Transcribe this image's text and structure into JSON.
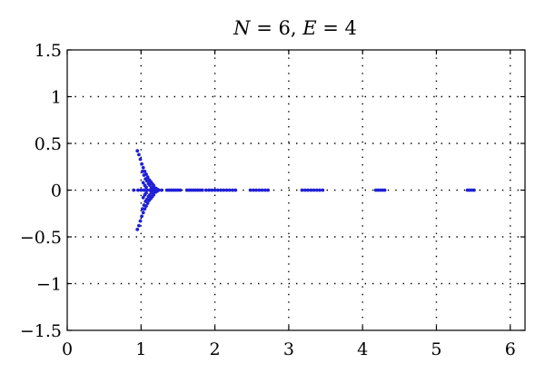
{
  "chart_data": {
    "type": "scatter",
    "title_parts": [
      {
        "text": "N",
        "italic": true
      },
      {
        "text": " = 6, ",
        "italic": false
      },
      {
        "text": "E",
        "italic": true
      },
      {
        "text": " = 4",
        "italic": false
      }
    ],
    "xlabel": "",
    "ylabel": "",
    "xlim": [
      0,
      6.2
    ],
    "ylim": [
      -1.5,
      1.5
    ],
    "grid": true,
    "series_color": "#1f1fd6",
    "xticks": [
      0,
      1,
      2,
      3,
      4,
      5,
      6
    ],
    "yticks": [
      1.5,
      1,
      0.5,
      0,
      -0.5,
      -1,
      -1.5
    ],
    "xtick_labels": [
      "0",
      "1",
      "2",
      "3",
      "4",
      "5",
      "6"
    ],
    "ytick_labels": [
      "1.5",
      "1",
      "0.5",
      "0",
      "−0.5",
      "−1",
      "−1.5"
    ],
    "points": [
      [
        0.95,
        0.42
      ],
      [
        0.97,
        0.38
      ],
      [
        0.99,
        0.33
      ],
      [
        1.01,
        0.28
      ],
      [
        1.03,
        0.24
      ],
      [
        1.05,
        0.2
      ],
      [
        1.07,
        0.17
      ],
      [
        1.09,
        0.14
      ],
      [
        1.11,
        0.11
      ],
      [
        1.13,
        0.09
      ],
      [
        1.15,
        0.07
      ],
      [
        1.17,
        0.05
      ],
      [
        0.95,
        -0.42
      ],
      [
        0.97,
        -0.38
      ],
      [
        0.99,
        -0.33
      ],
      [
        1.01,
        -0.28
      ],
      [
        1.03,
        -0.24
      ],
      [
        1.05,
        -0.2
      ],
      [
        1.07,
        -0.17
      ],
      [
        1.09,
        -0.14
      ],
      [
        1.11,
        -0.11
      ],
      [
        1.13,
        -0.09
      ],
      [
        1.15,
        -0.07
      ],
      [
        1.17,
        -0.05
      ],
      [
        1.02,
        0.2
      ],
      [
        1.04,
        0.16
      ],
      [
        1.06,
        0.12
      ],
      [
        1.08,
        0.1
      ],
      [
        1.1,
        0.07
      ],
      [
        1.12,
        0.05
      ],
      [
        1.02,
        -0.2
      ],
      [
        1.04,
        -0.16
      ],
      [
        1.06,
        -0.12
      ],
      [
        1.08,
        -0.1
      ],
      [
        1.1,
        -0.07
      ],
      [
        1.12,
        -0.05
      ],
      [
        1.03,
        0.08
      ],
      [
        1.05,
        0.05
      ],
      [
        1.07,
        0.03
      ],
      [
        1.03,
        -0.08
      ],
      [
        1.05,
        -0.05
      ],
      [
        1.07,
        -0.03
      ],
      [
        1.14,
        0.02
      ],
      [
        1.16,
        0.03
      ],
      [
        1.18,
        0.02
      ],
      [
        1.14,
        -0.02
      ],
      [
        1.16,
        -0.03
      ],
      [
        1.18,
        -0.02
      ],
      [
        1.2,
        0.02
      ],
      [
        1.22,
        0.01
      ],
      [
        1.2,
        -0.02
      ],
      [
        1.22,
        -0.01
      ],
      [
        0.9,
        0
      ],
      [
        0.96,
        0
      ],
      [
        1.0,
        0
      ],
      [
        1.04,
        0
      ],
      [
        1.08,
        0
      ],
      [
        1.12,
        0
      ],
      [
        1.16,
        0
      ],
      [
        1.2,
        0
      ],
      [
        1.24,
        0
      ],
      [
        1.28,
        0
      ],
      [
        1.35,
        0
      ],
      [
        1.38,
        0
      ],
      [
        1.41,
        0
      ],
      [
        1.44,
        0
      ],
      [
        1.47,
        0
      ],
      [
        1.5,
        0
      ],
      [
        1.53,
        0
      ],
      [
        1.62,
        0
      ],
      [
        1.65,
        0
      ],
      [
        1.68,
        0
      ],
      [
        1.71,
        0
      ],
      [
        1.74,
        0
      ],
      [
        1.77,
        0
      ],
      [
        1.8,
        0
      ],
      [
        1.83,
        0
      ],
      [
        1.88,
        0
      ],
      [
        1.92,
        0
      ],
      [
        1.96,
        0
      ],
      [
        2.0,
        0
      ],
      [
        2.04,
        0
      ],
      [
        2.08,
        0
      ],
      [
        2.12,
        0
      ],
      [
        2.16,
        0
      ],
      [
        2.2,
        0
      ],
      [
        2.24,
        0
      ],
      [
        2.28,
        0
      ],
      [
        2.48,
        0
      ],
      [
        2.52,
        0
      ],
      [
        2.56,
        0
      ],
      [
        2.6,
        0
      ],
      [
        2.64,
        0
      ],
      [
        2.68,
        0
      ],
      [
        2.72,
        0
      ],
      [
        3.18,
        0
      ],
      [
        3.22,
        0
      ],
      [
        3.26,
        0
      ],
      [
        3.3,
        0
      ],
      [
        3.34,
        0
      ],
      [
        3.38,
        0
      ],
      [
        3.42,
        0
      ],
      [
        3.46,
        0
      ],
      [
        4.18,
        0
      ],
      [
        4.21,
        0
      ],
      [
        4.24,
        0
      ],
      [
        4.27,
        0
      ],
      [
        4.3,
        0
      ],
      [
        5.42,
        0
      ],
      [
        5.45,
        0
      ],
      [
        5.48,
        0
      ],
      [
        5.51,
        0
      ]
    ]
  }
}
